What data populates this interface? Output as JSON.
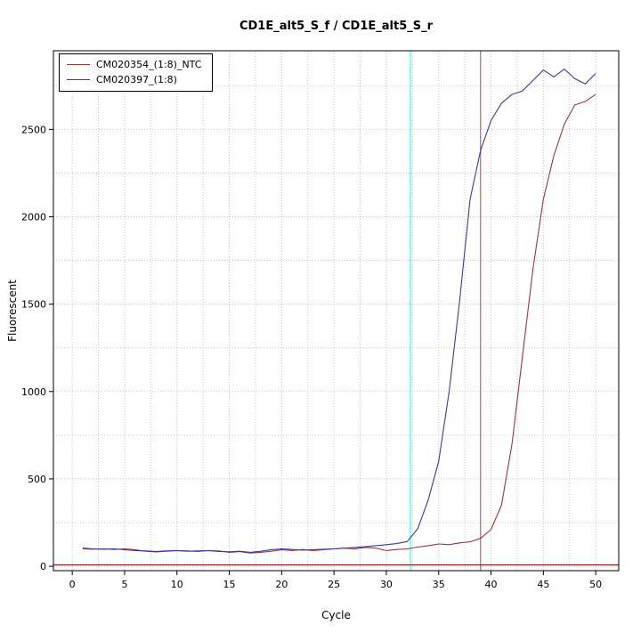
{
  "title": "CD1E_alt5_S_f / CD1E_alt5_S_r",
  "axis": {
    "xlabel": "Cycle",
    "ylabel": "Fluorescent"
  },
  "legend": [
    {
      "label": "CM020354_(1:8)_NTC",
      "color": "#993939"
    },
    {
      "label": "CM020397_(1:8)",
      "color": "#3939a6"
    }
  ],
  "chart_data": {
    "type": "line",
    "title": "CD1E_alt5_S_f / CD1E_alt5_S_r",
    "xlabel": "Cycle",
    "ylabel": "Fluorescent",
    "xlim": [
      -1.8,
      52.2
    ],
    "ylim": [
      -25,
      2950
    ],
    "xticks": [
      0,
      5,
      10,
      15,
      20,
      25,
      30,
      35,
      40,
      45,
      50
    ],
    "yticks": [
      0,
      500,
      1000,
      1500,
      2000,
      2500
    ],
    "grid": {
      "color": "#c8c8c8",
      "x_start": 0,
      "x_end": 50,
      "x_step": 2.5,
      "y_start": 0,
      "y_end": 2750,
      "y_step": 250
    },
    "x": [
      1,
      2,
      3,
      4,
      5,
      6,
      7,
      8,
      9,
      10,
      11,
      12,
      13,
      14,
      15,
      16,
      17,
      18,
      19,
      20,
      21,
      22,
      23,
      24,
      25,
      26,
      27,
      28,
      29,
      30,
      31,
      32,
      33,
      34,
      35,
      36,
      37,
      38,
      39,
      40,
      41,
      42,
      43,
      44,
      45,
      46,
      47,
      48,
      49,
      50
    ],
    "series": [
      {
        "name": "CM020354_(1:8)_NTC",
        "color": "#993939",
        "values": [
          100,
          98,
          100,
          96,
          100,
          95,
          86,
          82,
          86,
          90,
          88,
          85,
          90,
          88,
          80,
          84,
          76,
          80,
          86,
          95,
          90,
          96,
          90,
          95,
          100,
          104,
          100,
          108,
          104,
          90,
          96,
          100,
          110,
          118,
          128,
          124,
          134,
          140,
          160,
          210,
          350,
          700,
          1200,
          1700,
          2100,
          2350,
          2530,
          2640,
          2660,
          2700
        ]
      },
      {
        "name": "CM020397_(1:8)",
        "color": "#3939a6",
        "values": [
          105,
          100,
          98,
          100,
          95,
          90,
          88,
          85,
          88,
          90,
          86,
          88,
          90,
          85,
          83,
          86,
          80,
          86,
          95,
          100,
          96,
          92,
          95,
          98,
          100,
          104,
          108,
          112,
          118,
          124,
          130,
          142,
          215,
          380,
          600,
          1000,
          1520,
          2100,
          2380,
          2550,
          2650,
          2700,
          2720,
          2780,
          2840,
          2800,
          2845,
          2790,
          2760,
          2820
        ]
      }
    ],
    "vlines": [
      {
        "x": 32.3,
        "color": "#00ffff",
        "name": "ct-line-cyan"
      },
      {
        "x": 39.0,
        "color": "#cc3c3c",
        "name": "ct-line-red"
      }
    ],
    "hlines": [
      {
        "y": 8,
        "color": "#8b2525",
        "name": "threshold-line"
      }
    ],
    "legend_position": "top-left",
    "grid_on": true
  }
}
